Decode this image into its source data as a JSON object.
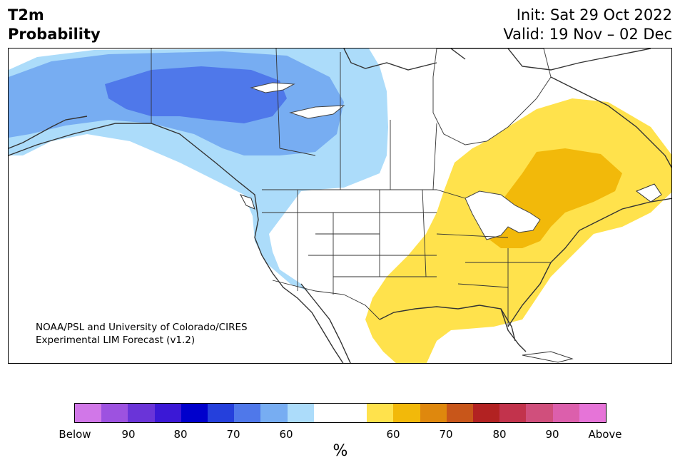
{
  "title": {
    "line1": "T2m",
    "line2": "Probability"
  },
  "dates": {
    "init": "Init: Sat 29 Oct 2022",
    "valid": "Valid: 19 Nov – 02 Dec"
  },
  "credit": {
    "line1": "NOAA/PSL and University of Colorado/CIRES",
    "line2": "Experimental LIM Forecast (v1.2)"
  },
  "colorbar": {
    "colors": [
      "#d177e8",
      "#9d52e0",
      "#6a34d8",
      "#3b18d6",
      "#0000cc",
      "#2540dc",
      "#4f78ea",
      "#77adf2",
      "#acdcfa",
      "#ffffff",
      "#ffffff",
      "#ffe24c",
      "#f2b90a",
      "#df880d",
      "#c8561a",
      "#b22222",
      "#c2334c",
      "#d04f7c",
      "#dc5fac",
      "#e674d8"
    ],
    "labels": [
      "Below",
      "90",
      "80",
      "70",
      "60",
      "60",
      "70",
      "80",
      "90",
      "Above"
    ],
    "unit": "%"
  },
  "map": {
    "below_normal_region": "Alaska and Northwest Canada / Pacific Northwest",
    "above_normal_region": "Eastern United States and Eastern Canada"
  }
}
